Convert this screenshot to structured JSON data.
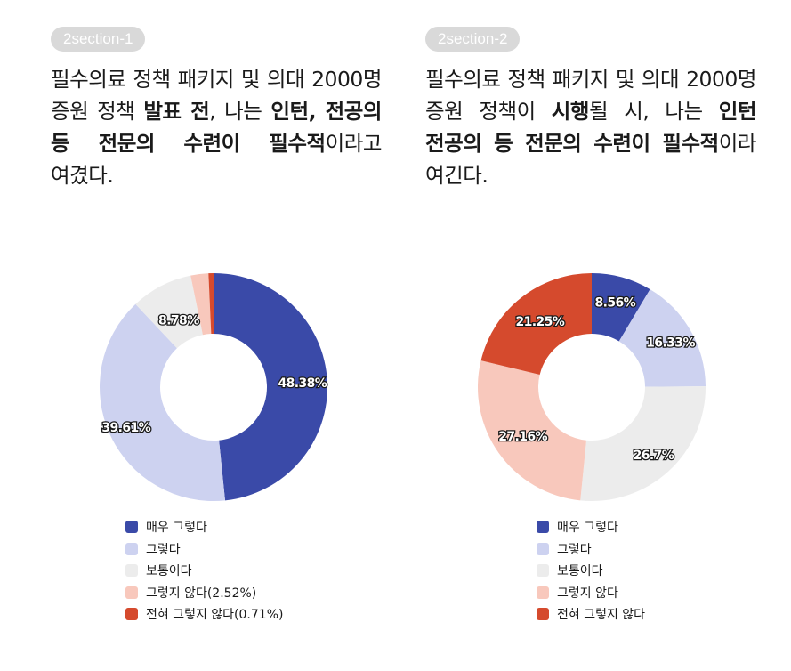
{
  "sections": [
    {
      "pill": "2section-1",
      "text_parts": [
        {
          "t": "필수의료 정책 패키지 및 의대 2000명 증원 정책 ",
          "b": false
        },
        {
          "t": "발표 전",
          "b": true
        },
        {
          "t": ", 나는 ",
          "b": false
        },
        {
          "t": "인턴, 전공의 등 전문의 수련이 필수적",
          "b": true
        },
        {
          "t": "이라고 여겼다.",
          "b": false
        }
      ]
    },
    {
      "pill": "2section-2",
      "text_parts": [
        {
          "t": "필수의료 정책 패키지 및 의대 2000명 증원 정책이 ",
          "b": false
        },
        {
          "t": "시행",
          "b": true
        },
        {
          "t": "될 시, 나는 ",
          "b": false
        },
        {
          "t": "인턴 전공의 등 전문의 수련이 필수적",
          "b": true
        },
        {
          "t": "이라 여긴다.",
          "b": false
        }
      ]
    }
  ],
  "chart_data": [
    {
      "type": "pie",
      "donut": true,
      "categories": [
        "매우 그렇다",
        "그렇다",
        "보통이다",
        "그렇지 않다(2.52%)",
        "전혀 그렇지 않다(0.71%)"
      ],
      "values": [
        48.38,
        39.61,
        8.78,
        2.52,
        0.71
      ],
      "data_labels": [
        "48.38%",
        "39.61%",
        "8.78%",
        "",
        ""
      ],
      "colors": [
        "#3a4aa8",
        "#cdd2f0",
        "#ececec",
        "#f8c8bc",
        "#d54a2d"
      ],
      "legend": "bottom"
    },
    {
      "type": "pie",
      "donut": true,
      "categories": [
        "매우 그렇다",
        "그렇다",
        "보통이다",
        "그렇지 않다",
        "전혀 그렇지 않다"
      ],
      "values": [
        8.56,
        16.33,
        26.7,
        27.16,
        21.25
      ],
      "data_labels": [
        "8.56%",
        "16.33%",
        "26.7%",
        "27.16%",
        "21.25%"
      ],
      "colors": [
        "#3a4aa8",
        "#cdd2f0",
        "#ececec",
        "#f8c8bc",
        "#d54a2d"
      ],
      "legend": "bottom"
    }
  ]
}
